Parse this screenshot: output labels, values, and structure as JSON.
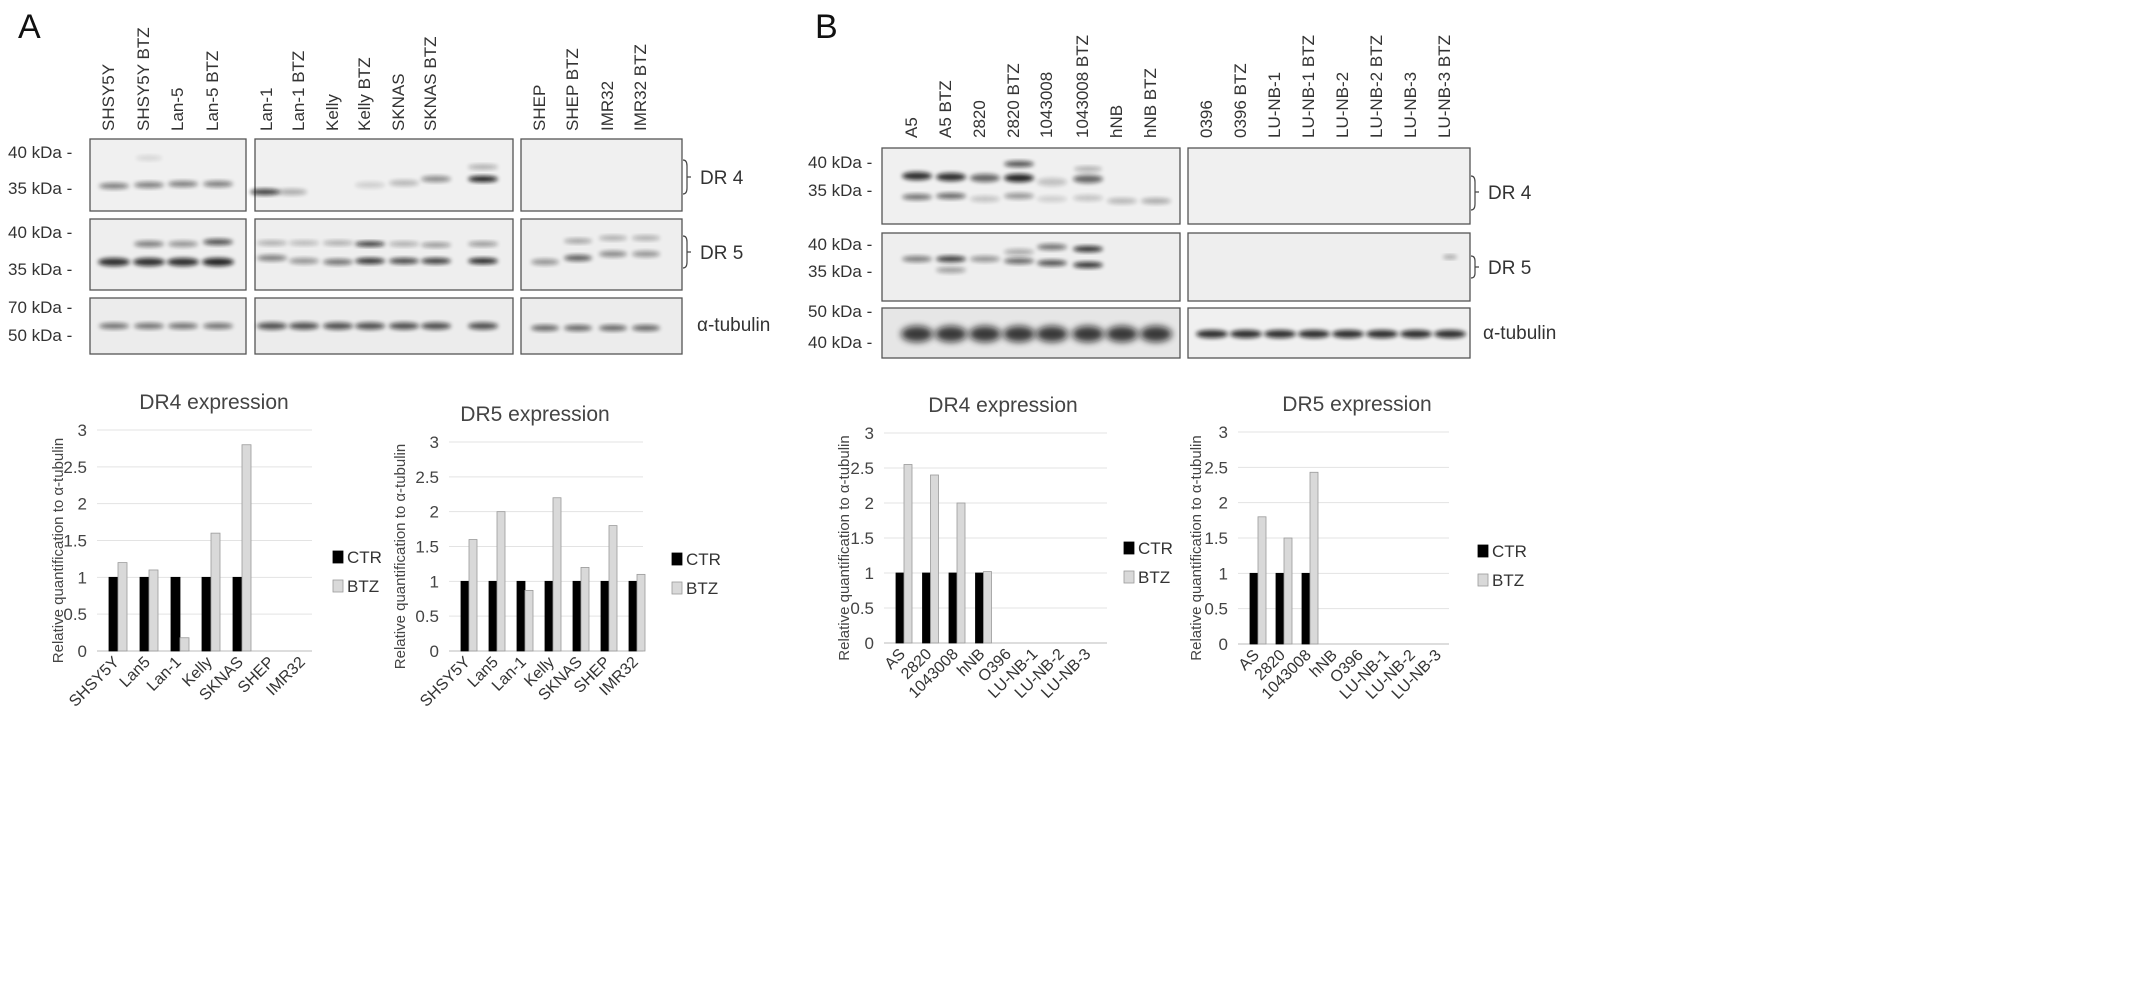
{
  "panels": {
    "a": "A",
    "b": "B"
  },
  "blots": {
    "dr4_label": "DR 4",
    "dr5_label": "DR 5",
    "tubulin_label": "α-tubulin",
    "a_lanes": [
      "SHSY5Y",
      "SHSY5Y  BTZ",
      "Lan-5",
      "Lan-5  BTZ",
      "Lan-1",
      "Lan-1  BTZ",
      "Kelly",
      "Kelly  BTZ",
      "SKNAS",
      "SKNAS  BTZ",
      "SHEP",
      "SHEP  BTZ",
      "IMR32",
      "IMR32  BTZ"
    ],
    "b_lanes": [
      "A5",
      "A5  BTZ",
      "2820",
      "2820  BTZ",
      "1043008",
      "1043008  BTZ",
      "hNB",
      "hNB  BTZ",
      "0396",
      "0396  BTZ",
      "LU-NB-1",
      "LU-NB-1  BTZ",
      "LU-NB-2",
      "LU-NB-2  BTZ",
      "LU-NB-3",
      "LU-NB-3  BTZ"
    ],
    "a_markers": {
      "dr4": [
        "40 kDa -",
        "35 kDa -"
      ],
      "dr5": [
        "40 kDa -",
        "35 kDa -"
      ],
      "tub": [
        "70 kDa -",
        "50 kDa -"
      ]
    },
    "b_markers": {
      "dr4": [
        "40 kDa -",
        "35 kDa -"
      ],
      "dr5": [
        "40 kDa -",
        "35 kDa -"
      ],
      "tub": [
        "50 kDa -",
        "40 kDa -"
      ]
    }
  },
  "legend": {
    "ctr": "CTR",
    "btz": "BTZ"
  },
  "chart_data": [
    {
      "type": "bar",
      "title": "DR4 expression",
      "ylabel": "Relative quantification to α-tubulin",
      "ylim": [
        0,
        3
      ],
      "yticks": [
        "0",
        "0.5",
        "1",
        "1.5",
        "2",
        "2.5",
        "3"
      ],
      "categories": [
        "SHSY5Y",
        "Lan5",
        "Lan-1",
        "Kelly",
        "SKNAS",
        "SHEP",
        "IMR32"
      ],
      "series": [
        {
          "name": "CTR",
          "color": "#000000",
          "values": [
            1,
            1,
            1,
            1,
            1,
            null,
            null
          ]
        },
        {
          "name": "BTZ",
          "color": "#d9d9d9",
          "values": [
            1.2,
            1.1,
            0.18,
            1.6,
            2.8,
            null,
            null
          ]
        }
      ]
    },
    {
      "type": "bar",
      "title": "DR5 expression",
      "ylabel": "Relative quantification to α-tubulin",
      "ylim": [
        0,
        3
      ],
      "yticks": [
        "0",
        "0.5",
        "1",
        "1.5",
        "2",
        "2.5",
        "3"
      ],
      "categories": [
        "SHSY5Y",
        "Lan5",
        "Lan-1",
        "Kelly",
        "SKNAS",
        "SHEP",
        "IMR32"
      ],
      "series": [
        {
          "name": "CTR",
          "color": "#000000",
          "values": [
            1,
            1,
            1,
            1,
            1,
            1,
            1
          ]
        },
        {
          "name": "BTZ",
          "color": "#d9d9d9",
          "values": [
            1.6,
            2.0,
            0.87,
            2.2,
            1.2,
            1.8,
            1.1
          ]
        }
      ]
    },
    {
      "type": "bar",
      "title": "DR4 expression",
      "ylabel": "Relative quantification to α-tubulin",
      "ylim": [
        0,
        3
      ],
      "yticks": [
        "0",
        "0.5",
        "1",
        "1.5",
        "2",
        "2.5",
        "3"
      ],
      "categories": [
        "AS",
        "2820",
        "1043008",
        "hNB",
        "O396",
        "LU-NB-1",
        "LU-NB-2",
        "LU-NB-3"
      ],
      "series": [
        {
          "name": "CTR",
          "color": "#000000",
          "values": [
            1,
            1,
            1,
            1,
            null,
            null,
            null,
            null
          ]
        },
        {
          "name": "BTZ",
          "color": "#d9d9d9",
          "values": [
            2.55,
            2.4,
            2.0,
            1.02,
            null,
            null,
            null,
            null
          ]
        }
      ]
    },
    {
      "type": "bar",
      "title": "DR5 expression",
      "ylabel": "Relative quantification to α-tubulin",
      "ylim": [
        0,
        3
      ],
      "yticks": [
        "0",
        "0.5",
        "1",
        "1.5",
        "2",
        "2.5",
        "3"
      ],
      "categories": [
        "AS",
        "2820",
        "1043008",
        "hNB",
        "O396",
        "LU-NB-1",
        "LU-NB-2",
        "LU-NB-3"
      ],
      "series": [
        {
          "name": "CTR",
          "color": "#000000",
          "values": [
            1,
            1,
            1,
            null,
            null,
            null,
            null,
            null
          ]
        },
        {
          "name": "BTZ",
          "color": "#d9d9d9",
          "values": [
            1.8,
            1.5,
            2.43,
            null,
            null,
            null,
            null,
            null
          ]
        }
      ]
    }
  ]
}
